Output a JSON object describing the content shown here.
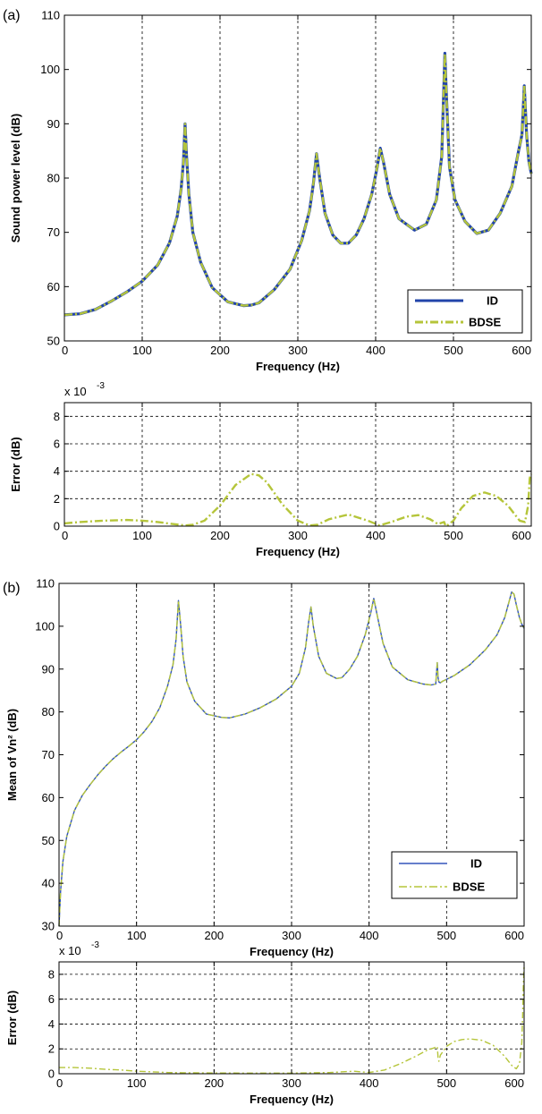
{
  "panel_labels": [
    "(a)",
    "(b)"
  ],
  "chart_data": [
    {
      "type": "line",
      "panel": "(a)",
      "xlabel": "Frequency (Hz)",
      "ylabel": "Sound power level (dB)",
      "xlim": [
        0,
        600
      ],
      "ylim": [
        50,
        110
      ],
      "xticks": [
        0,
        100,
        200,
        300,
        400,
        500,
        600
      ],
      "yticks": [
        50,
        60,
        70,
        80,
        90,
        100,
        110
      ],
      "grid": "x",
      "legend_position": "bottom-right",
      "series": [
        {
          "name": "ID",
          "color": "#2244aa",
          "style": "solid",
          "x": [
            0,
            20,
            40,
            60,
            80,
            100,
            120,
            135,
            145,
            150,
            153,
            155,
            157,
            160,
            165,
            175,
            190,
            210,
            230,
            240,
            250,
            270,
            290,
            305,
            315,
            320,
            324,
            328,
            335,
            345,
            355,
            365,
            375,
            385,
            395,
            402,
            406,
            410,
            418,
            430,
            450,
            465,
            478,
            485,
            489,
            491,
            495,
            502,
            515,
            530,
            545,
            560,
            575,
            583,
            588,
            591,
            594,
            597,
            600
          ],
          "y": [
            54.8,
            55.0,
            55.8,
            57.3,
            59.0,
            61.0,
            64.0,
            68.0,
            73.0,
            78.0,
            83.0,
            90.0,
            84.0,
            77.0,
            70.0,
            64.5,
            59.8,
            57.2,
            56.5,
            56.6,
            57.0,
            59.5,
            63.2,
            68.5,
            74.0,
            79.0,
            84.5,
            80.0,
            73.5,
            69.5,
            68.0,
            68.0,
            69.5,
            72.5,
            77.0,
            82.0,
            85.5,
            83.0,
            77.0,
            72.5,
            70.4,
            71.5,
            76.0,
            84.0,
            103.0,
            95.0,
            82.0,
            76.0,
            72.0,
            69.8,
            70.4,
            73.5,
            78.5,
            84.5,
            88.0,
            97.0,
            88.0,
            83.0,
            80.8
          ]
        },
        {
          "name": "BDSE",
          "color": "#b5c53a",
          "style": "dashdot",
          "x": [
            0,
            20,
            40,
            60,
            80,
            100,
            120,
            135,
            145,
            150,
            153,
            155,
            157,
            160,
            165,
            175,
            190,
            210,
            230,
            240,
            250,
            270,
            290,
            305,
            315,
            320,
            324,
            328,
            335,
            345,
            355,
            365,
            375,
            385,
            395,
            402,
            406,
            410,
            418,
            430,
            450,
            465,
            478,
            485,
            489,
            491,
            495,
            502,
            515,
            530,
            545,
            560,
            575,
            583,
            588,
            591,
            594,
            597,
            600
          ],
          "y": [
            54.8,
            55.0,
            55.8,
            57.3,
            59.0,
            61.0,
            64.0,
            68.0,
            73.0,
            78.0,
            83.0,
            90.0,
            84.0,
            77.0,
            70.0,
            64.5,
            59.8,
            57.2,
            56.5,
            56.6,
            57.0,
            59.5,
            63.2,
            68.5,
            74.0,
            79.0,
            84.5,
            80.0,
            73.5,
            69.5,
            68.0,
            68.0,
            69.5,
            72.5,
            77.0,
            82.0,
            85.5,
            83.0,
            77.0,
            72.5,
            70.4,
            71.5,
            76.0,
            84.0,
            103.0,
            95.0,
            82.0,
            76.0,
            72.0,
            69.8,
            70.4,
            73.5,
            78.5,
            84.5,
            88.0,
            97.0,
            88.0,
            83.0,
            80.8
          ]
        }
      ]
    },
    {
      "type": "line",
      "panel": "(a) error",
      "xlabel": "Frequency (Hz)",
      "ylabel": "Error (dB)",
      "scale_label": "x 10",
      "scale_exponent": "-3",
      "xlim": [
        0,
        600
      ],
      "ylim": [
        0,
        9
      ],
      "xticks": [
        0,
        100,
        200,
        300,
        400,
        500,
        600
      ],
      "yticks": [
        0,
        2,
        4,
        6,
        8
      ],
      "grid": "both",
      "series": [
        {
          "name": "BDSE",
          "color": "#b5c53a",
          "style": "dashdot",
          "x": [
            0,
            20,
            50,
            80,
            100,
            120,
            140,
            155,
            165,
            180,
            200,
            220,
            240,
            250,
            260,
            280,
            300,
            315,
            325,
            340,
            365,
            390,
            405,
            420,
            440,
            455,
            470,
            480,
            488,
            490,
            492,
            500,
            510,
            525,
            540,
            555,
            570,
            585,
            592,
            596,
            598,
            600
          ],
          "y": [
            0.2,
            0.3,
            0.4,
            0.45,
            0.4,
            0.3,
            0.15,
            0.05,
            0.1,
            0.4,
            1.5,
            3.0,
            3.8,
            3.7,
            3.2,
            1.6,
            0.4,
            0.05,
            0.1,
            0.5,
            0.85,
            0.4,
            0.05,
            0.3,
            0.7,
            0.8,
            0.5,
            0.15,
            0.3,
            0.0,
            0.05,
            0.4,
            1.3,
            2.2,
            2.45,
            2.2,
            1.5,
            0.4,
            0.3,
            1.5,
            3.5,
            3.8
          ]
        }
      ]
    },
    {
      "type": "line",
      "panel": "(b)",
      "xlabel": "Frequency (Hz)",
      "ylabel": "Mean of Vn² (dB)",
      "xlim": [
        0,
        600
      ],
      "ylim": [
        30,
        110
      ],
      "xticks": [
        0,
        100,
        200,
        300,
        400,
        500,
        600
      ],
      "yticks": [
        30,
        40,
        50,
        60,
        70,
        80,
        90,
        100,
        110
      ],
      "grid": "x",
      "legend_position": "bottom-right",
      "series": [
        {
          "name": "ID",
          "color": "#3355bb",
          "style": "solid",
          "x": [
            0,
            2,
            5,
            10,
            20,
            30,
            40,
            50,
            60,
            70,
            80,
            90,
            100,
            110,
            120,
            130,
            140,
            147,
            151,
            154,
            157,
            160,
            165,
            175,
            190,
            210,
            220,
            240,
            260,
            280,
            300,
            310,
            318,
            322,
            325,
            328,
            335,
            345,
            358,
            365,
            375,
            385,
            395,
            402,
            406,
            410,
            418,
            430,
            450,
            470,
            480,
            486,
            488,
            489,
            490,
            492,
            495,
            500,
            510,
            530,
            550,
            565,
            575,
            581,
            584,
            587,
            590,
            594,
            597,
            600
          ],
          "y": [
            30.0,
            38.0,
            45.0,
            51.0,
            57.0,
            60.5,
            63.0,
            65.3,
            67.3,
            69.1,
            70.6,
            72.0,
            73.5,
            75.4,
            77.8,
            81.0,
            86.0,
            91.0,
            97.0,
            106.0,
            100.0,
            93.0,
            87.0,
            82.5,
            79.5,
            78.7,
            78.6,
            79.5,
            81.0,
            83.0,
            86.0,
            89.0,
            95.0,
            101.0,
            104.5,
            100.0,
            93.0,
            89.0,
            87.8,
            88.0,
            90.0,
            93.0,
            98.0,
            103.0,
            106.5,
            103.0,
            96.0,
            90.5,
            87.5,
            86.5,
            86.3,
            86.5,
            91.5,
            88.0,
            87.0,
            86.8,
            87.2,
            87.6,
            88.5,
            91.0,
            94.5,
            98.0,
            102.0,
            106.0,
            108.0,
            107.5,
            105.0,
            102.0,
            100.5,
            99.5
          ]
        },
        {
          "name": "BDSE",
          "color": "#b5c53a",
          "style": "dashdot",
          "x": [
            0,
            2,
            5,
            10,
            20,
            30,
            40,
            50,
            60,
            70,
            80,
            90,
            100,
            110,
            120,
            130,
            140,
            147,
            151,
            154,
            157,
            160,
            165,
            175,
            190,
            210,
            220,
            240,
            260,
            280,
            300,
            310,
            318,
            322,
            325,
            328,
            335,
            345,
            358,
            365,
            375,
            385,
            395,
            402,
            406,
            410,
            418,
            430,
            450,
            470,
            480,
            486,
            488,
            489,
            490,
            492,
            495,
            500,
            510,
            530,
            550,
            565,
            575,
            581,
            584,
            587,
            590,
            594,
            597,
            600
          ],
          "y": [
            30.0,
            38.0,
            45.0,
            51.0,
            57.0,
            60.5,
            63.0,
            65.3,
            67.3,
            69.1,
            70.6,
            72.0,
            73.5,
            75.4,
            77.8,
            81.0,
            86.0,
            91.0,
            97.0,
            106.0,
            100.0,
            93.0,
            87.0,
            82.5,
            79.5,
            78.7,
            78.6,
            79.5,
            81.0,
            83.0,
            86.0,
            89.0,
            95.0,
            101.0,
            104.5,
            100.0,
            93.0,
            89.0,
            87.8,
            88.0,
            90.0,
            93.0,
            98.0,
            103.0,
            106.5,
            103.0,
            96.0,
            90.5,
            87.5,
            86.5,
            86.3,
            86.5,
            91.5,
            88.0,
            87.0,
            86.8,
            87.2,
            87.6,
            88.5,
            91.0,
            94.5,
            98.0,
            102.0,
            106.0,
            108.0,
            107.5,
            105.0,
            102.0,
            100.5,
            99.5
          ]
        }
      ]
    },
    {
      "type": "line",
      "panel": "(b) error",
      "xlabel": "Frequency (Hz)",
      "ylabel": "Error (dB)",
      "scale_label": "x 10",
      "scale_exponent": "-3",
      "xlim": [
        0,
        600
      ],
      "ylim": [
        0,
        9
      ],
      "xticks": [
        0,
        100,
        200,
        300,
        400,
        500,
        600
      ],
      "yticks": [
        0,
        2,
        4,
        6,
        8
      ],
      "grid": "both",
      "series": [
        {
          "name": "BDSE",
          "color": "#b5c53a",
          "style": "dashdot",
          "x": [
            0,
            20,
            40,
            60,
            80,
            100,
            120,
            140,
            160,
            200,
            250,
            300,
            350,
            380,
            400,
            420,
            440,
            460,
            475,
            485,
            488,
            489,
            490,
            492,
            500,
            510,
            520,
            530,
            545,
            560,
            575,
            585,
            590,
            594,
            597,
            598,
            599,
            600
          ],
          "y": [
            0.5,
            0.5,
            0.45,
            0.35,
            0.3,
            0.2,
            0.15,
            0.1,
            0.08,
            0.06,
            0.05,
            0.05,
            0.1,
            0.2,
            0.1,
            0.3,
            0.8,
            1.4,
            1.9,
            2.1,
            2.2,
            1.3,
            1.0,
            1.5,
            2.2,
            2.6,
            2.75,
            2.8,
            2.7,
            2.3,
            1.4,
            0.6,
            0.4,
            0.8,
            2.5,
            4.5,
            7.0,
            8.6
          ]
        }
      ]
    }
  ]
}
